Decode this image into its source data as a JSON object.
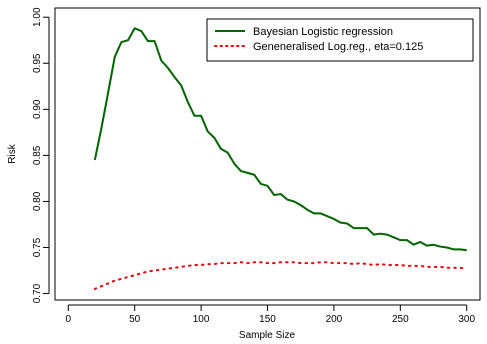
{
  "chart_data": {
    "type": "line",
    "xlabel": "Sample Size",
    "ylabel": "Risk",
    "xlim": [
      -10,
      310
    ],
    "ylim": [
      0.693,
      1.01
    ],
    "x_ticks": [
      0,
      50,
      100,
      150,
      200,
      250,
      300
    ],
    "x_tick_labels": [
      "0",
      "50",
      "100",
      "150",
      "200",
      "250",
      "300"
    ],
    "y_ticks": [
      0.7,
      0.75,
      0.8,
      0.85,
      0.9,
      0.95,
      1.0
    ],
    "y_tick_labels": [
      "0.70",
      "0.75",
      "0.80",
      "0.85",
      "0.90",
      "0.95",
      "1.00"
    ],
    "grid": false,
    "legend_position": "top-right",
    "series": [
      {
        "name": "Bayesian Logistic regression",
        "color": "#006400",
        "style": "solid",
        "x": [
          20,
          25,
          30,
          35,
          40,
          45,
          50,
          55,
          60,
          65,
          70,
          75,
          80,
          85,
          90,
          95,
          100,
          105,
          110,
          115,
          120,
          125,
          130,
          135,
          140,
          145,
          150,
          155,
          160,
          165,
          170,
          175,
          180,
          185,
          190,
          195,
          200,
          205,
          210,
          215,
          220,
          225,
          230,
          235,
          240,
          245,
          250,
          255,
          260,
          265,
          270,
          275,
          280,
          285,
          290,
          295,
          300
        ],
        "values": [
          0.845,
          0.88,
          0.918,
          0.957,
          0.973,
          0.975,
          0.988,
          0.985,
          0.974,
          0.974,
          0.953,
          0.945,
          0.935,
          0.926,
          0.908,
          0.893,
          0.893,
          0.876,
          0.869,
          0.857,
          0.853,
          0.841,
          0.833,
          0.831,
          0.829,
          0.819,
          0.817,
          0.807,
          0.808,
          0.802,
          0.8,
          0.796,
          0.791,
          0.787,
          0.787,
          0.784,
          0.781,
          0.777,
          0.776,
          0.771,
          0.771,
          0.771,
          0.764,
          0.765,
          0.764,
          0.761,
          0.758,
          0.758,
          0.753,
          0.756,
          0.752,
          0.753,
          0.751,
          0.75,
          0.748,
          0.748,
          0.747
        ]
      },
      {
        "name": "Geneneralised Log.reg., eta=0.125",
        "color": "#e8000b",
        "style": "dotted",
        "x": [
          20,
          25,
          30,
          35,
          40,
          45,
          50,
          55,
          60,
          65,
          70,
          75,
          80,
          85,
          90,
          95,
          100,
          105,
          110,
          115,
          120,
          125,
          130,
          135,
          140,
          145,
          150,
          155,
          160,
          165,
          170,
          175,
          180,
          185,
          190,
          195,
          200,
          205,
          210,
          215,
          220,
          225,
          230,
          235,
          240,
          245,
          250,
          255,
          260,
          265,
          270,
          275,
          280,
          285,
          290,
          295,
          300
        ],
        "values": [
          0.705,
          0.708,
          0.711,
          0.714,
          0.716,
          0.718,
          0.72,
          0.722,
          0.724,
          0.725,
          0.726,
          0.727,
          0.728,
          0.729,
          0.73,
          0.731,
          0.731,
          0.732,
          0.732,
          0.733,
          0.733,
          0.733,
          0.734,
          0.733,
          0.734,
          0.734,
          0.733,
          0.733,
          0.734,
          0.734,
          0.734,
          0.733,
          0.733,
          0.733,
          0.734,
          0.734,
          0.733,
          0.733,
          0.733,
          0.732,
          0.733,
          0.732,
          0.731,
          0.732,
          0.731,
          0.731,
          0.731,
          0.73,
          0.73,
          0.73,
          0.729,
          0.729,
          0.729,
          0.728,
          0.728,
          0.728,
          0.727
        ]
      }
    ]
  }
}
